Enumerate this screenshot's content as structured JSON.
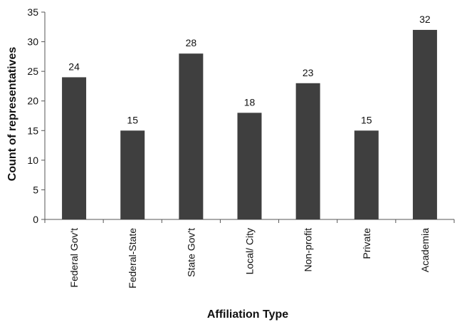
{
  "chart_data": {
    "type": "bar",
    "title": "",
    "xlabel": "Affiliation Type",
    "ylabel": "Count of representatives",
    "categories": [
      "Federal Gov't",
      "Federal-State",
      "State Gov't",
      "Local/ City",
      "Non-profit",
      "Private",
      "Academia"
    ],
    "values": [
      24,
      15,
      28,
      18,
      23,
      15,
      32
    ],
    "ylim": [
      0,
      35
    ],
    "yticks": [
      0,
      5,
      10,
      15,
      20,
      25,
      30,
      35
    ],
    "grid": false,
    "legend": "none",
    "bar_color": "#3f3f3f"
  }
}
